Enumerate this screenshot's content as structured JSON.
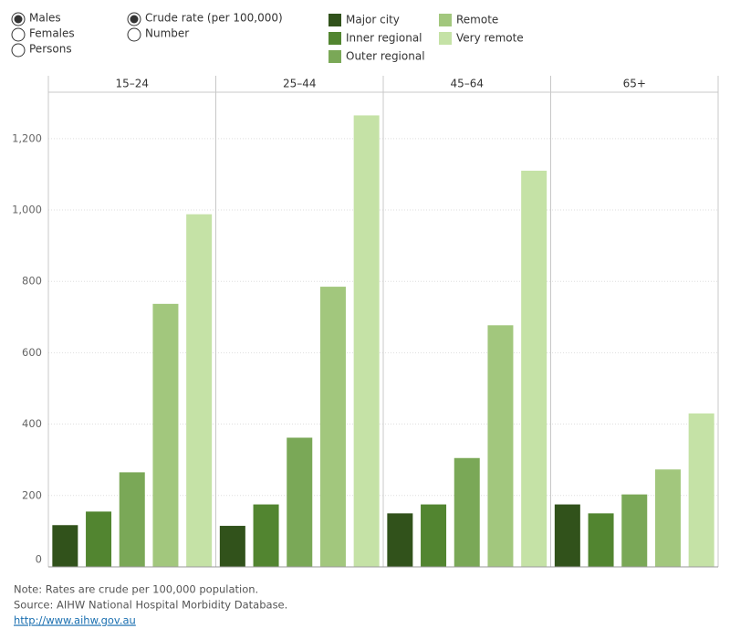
{
  "controls": {
    "sex": {
      "options": [
        "Males",
        "Females",
        "Persons"
      ],
      "selected": 0
    },
    "measure": {
      "options": [
        "Crude rate (per 100,000)",
        "Number"
      ],
      "selected": 0
    }
  },
  "chart_data": {
    "type": "bar",
    "categories": [
      "15–24",
      "25–44",
      "45–64",
      "65+"
    ],
    "series": [
      {
        "name": "Major city",
        "color": "#31521b",
        "values": [
          117,
          115,
          150,
          175
        ]
      },
      {
        "name": "Inner regional",
        "color": "#528530",
        "values": [
          155,
          175,
          175,
          150
        ]
      },
      {
        "name": "Outer regional",
        "color": "#7aa857",
        "values": [
          265,
          362,
          305,
          203
        ]
      },
      {
        "name": "Remote",
        "color": "#a2c77d",
        "values": [
          737,
          785,
          677,
          273
        ]
      },
      {
        "name": "Very remote",
        "color": "#c5e2a6",
        "values": [
          988,
          1265,
          1110,
          430
        ]
      }
    ],
    "ylim": [
      0,
      1330
    ],
    "yticks": [
      0,
      200,
      400,
      600,
      800,
      {
        "value": 1000,
        "label": "1,000"
      },
      {
        "value": 1200,
        "label": "1,200"
      }
    ],
    "grid": true
  },
  "footer": {
    "note": "Note: Rates are crude per 100,000 population.",
    "source": "Source: AIHW National Hospital Morbidity Database.",
    "link": "http://www.aihw.gov.au"
  }
}
